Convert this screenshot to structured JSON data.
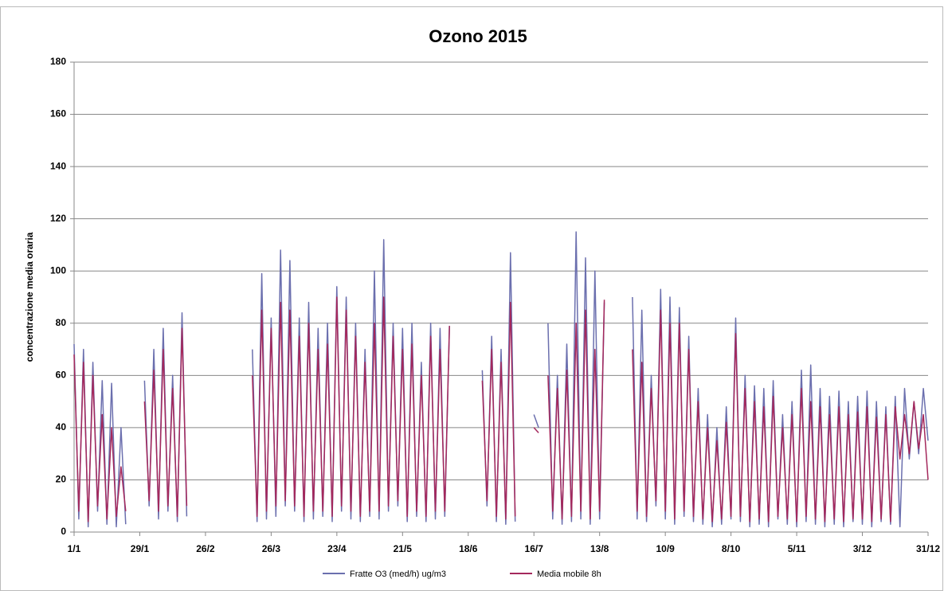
{
  "chart_data": {
    "type": "line",
    "title": "Ozono 2015",
    "y_label": "concentrazione media oraria",
    "xlim": [
      1,
      365
    ],
    "ylim": [
      0,
      180
    ],
    "grid": true,
    "legend": "bottom",
    "yticks": [
      0,
      20,
      40,
      60,
      80,
      100,
      120,
      140,
      160,
      180
    ],
    "xticks": [
      {
        "value": 1,
        "label": "1/1"
      },
      {
        "value": 29,
        "label": "29/1"
      },
      {
        "value": 57,
        "label": "26/2"
      },
      {
        "value": 85,
        "label": "26/3"
      },
      {
        "value": 113,
        "label": "23/4"
      },
      {
        "value": 141,
        "label": "21/5"
      },
      {
        "value": 169,
        "label": "18/6"
      },
      {
        "value": 197,
        "label": "16/7"
      },
      {
        "value": 225,
        "label": "13/8"
      },
      {
        "value": 253,
        "label": "10/9"
      },
      {
        "value": 281,
        "label": "8/10"
      },
      {
        "value": 309,
        "label": "5/11"
      },
      {
        "value": 337,
        "label": "3/12"
      },
      {
        "value": 365,
        "label": "31/12"
      }
    ],
    "x": [
      1,
      3,
      5,
      7,
      9,
      11,
      13,
      15,
      17,
      19,
      21,
      23,
      25,
      27,
      29,
      31,
      33,
      35,
      37,
      39,
      41,
      43,
      45,
      47,
      49,
      51,
      53,
      55,
      57,
      59,
      61,
      63,
      65,
      67,
      69,
      71,
      73,
      75,
      77,
      79,
      81,
      83,
      85,
      87,
      89,
      91,
      93,
      95,
      97,
      99,
      101,
      103,
      105,
      107,
      109,
      111,
      113,
      115,
      117,
      119,
      121,
      123,
      125,
      127,
      129,
      131,
      133,
      135,
      137,
      139,
      141,
      143,
      145,
      147,
      149,
      151,
      153,
      155,
      157,
      159,
      161,
      163,
      165,
      167,
      169,
      171,
      173,
      175,
      177,
      179,
      181,
      183,
      185,
      187,
      189,
      191,
      193,
      195,
      197,
      199,
      201,
      203,
      205,
      207,
      209,
      211,
      213,
      215,
      217,
      219,
      221,
      223,
      225,
      227,
      229,
      231,
      233,
      235,
      237,
      239,
      241,
      243,
      245,
      247,
      249,
      251,
      253,
      255,
      257,
      259,
      261,
      263,
      265,
      267,
      269,
      271,
      273,
      275,
      277,
      279,
      281,
      283,
      285,
      287,
      289,
      291,
      293,
      295,
      297,
      299,
      301,
      303,
      305,
      307,
      309,
      311,
      313,
      315,
      317,
      319,
      321,
      323,
      325,
      327,
      329,
      331,
      333,
      335,
      337,
      339,
      341,
      343,
      345,
      347,
      349,
      351,
      353,
      355,
      357,
      359,
      361,
      363,
      365
    ],
    "series": [
      {
        "name": "Fratte O3 (med/h) ug/m3",
        "color": "#6b6fae",
        "values": [
          72,
          5,
          70,
          2,
          65,
          8,
          58,
          3,
          57,
          2,
          40,
          3,
          null,
          null,
          null,
          58,
          10,
          70,
          5,
          78,
          8,
          60,
          4,
          84,
          6,
          null,
          null,
          null,
          null,
          null,
          null,
          null,
          null,
          null,
          null,
          null,
          null,
          null,
          70,
          4,
          99,
          5,
          82,
          6,
          108,
          10,
          104,
          8,
          82,
          4,
          88,
          5,
          78,
          6,
          80,
          4,
          94,
          8,
          90,
          5,
          80,
          4,
          70,
          6,
          100,
          5,
          112,
          8,
          80,
          10,
          78,
          4,
          80,
          6,
          65,
          4,
          80,
          5,
          78,
          6,
          79,
          null,
          null,
          null,
          null,
          null,
          null,
          62,
          10,
          75,
          4,
          70,
          3,
          107,
          4,
          null,
          null,
          null,
          45,
          40,
          null,
          80,
          5,
          60,
          3,
          72,
          4,
          115,
          5,
          105,
          3,
          100,
          5,
          88,
          null,
          null,
          null,
          null,
          null,
          90,
          5,
          85,
          4,
          60,
          10,
          93,
          5,
          90,
          3,
          86,
          6,
          75,
          4,
          55,
          3,
          45,
          2,
          40,
          3,
          48,
          5,
          82,
          4,
          60,
          2,
          56,
          3,
          55,
          2,
          58,
          5,
          45,
          3,
          50,
          2,
          62,
          4,
          64,
          3,
          55,
          2,
          52,
          3,
          54,
          2,
          50,
          4,
          52,
          3,
          54,
          2,
          50,
          4,
          48,
          3,
          52,
          2,
          55,
          28,
          50,
          30,
          55,
          35
        ]
      },
      {
        "name": "Media mobile 8h",
        "color": "#a4285c",
        "values": [
          68,
          8,
          65,
          4,
          60,
          10,
          45,
          5,
          40,
          6,
          25,
          8,
          null,
          null,
          null,
          50,
          12,
          62,
          8,
          70,
          10,
          55,
          6,
          78,
          10,
          null,
          null,
          null,
          null,
          null,
          null,
          null,
          null,
          null,
          null,
          null,
          null,
          null,
          60,
          6,
          85,
          8,
          78,
          10,
          88,
          12,
          85,
          10,
          75,
          6,
          80,
          8,
          70,
          8,
          72,
          6,
          90,
          10,
          85,
          8,
          75,
          6,
          65,
          8,
          80,
          8,
          90,
          10,
          75,
          12,
          70,
          6,
          72,
          8,
          60,
          6,
          75,
          8,
          70,
          8,
          79,
          null,
          null,
          null,
          null,
          null,
          null,
          58,
          12,
          70,
          6,
          65,
          5,
          88,
          6,
          null,
          null,
          null,
          40,
          38,
          null,
          60,
          8,
          55,
          5,
          62,
          6,
          80,
          8,
          85,
          5,
          70,
          8,
          89,
          null,
          null,
          null,
          null,
          null,
          70,
          8,
          65,
          6,
          55,
          12,
          85,
          8,
          80,
          5,
          80,
          8,
          70,
          6,
          50,
          5,
          40,
          4,
          35,
          5,
          42,
          6,
          76,
          6,
          55,
          4,
          50,
          5,
          48,
          4,
          52,
          6,
          40,
          5,
          45,
          4,
          55,
          6,
          50,
          5,
          48,
          4,
          45,
          5,
          48,
          4,
          45,
          5,
          46,
          5,
          48,
          4,
          44,
          5,
          45,
          4,
          48,
          28,
          45,
          30,
          50,
          32,
          45,
          20
        ]
      }
    ]
  }
}
